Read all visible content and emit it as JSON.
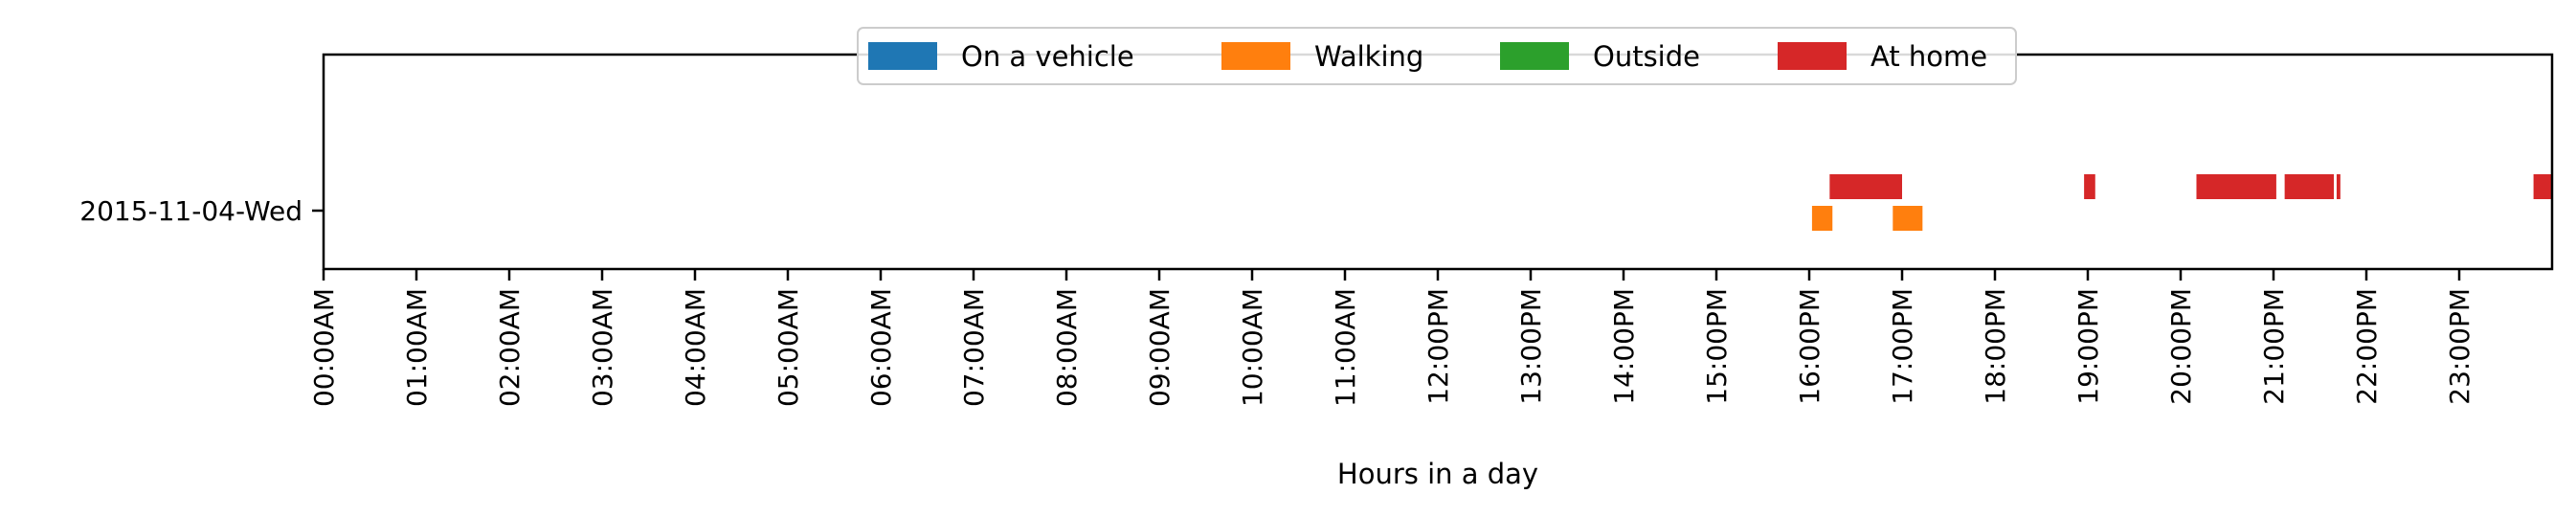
{
  "chart_data": {
    "type": "timeline",
    "title": "",
    "xlabel": "Hours in a day",
    "ylabel": "",
    "xlim": [
      0,
      24
    ],
    "x_ticks": [
      {
        "value": 0,
        "label": "00:00AM"
      },
      {
        "value": 1,
        "label": "01:00AM"
      },
      {
        "value": 2,
        "label": "02:00AM"
      },
      {
        "value": 3,
        "label": "03:00AM"
      },
      {
        "value": 4,
        "label": "04:00AM"
      },
      {
        "value": 5,
        "label": "05:00AM"
      },
      {
        "value": 6,
        "label": "06:00AM"
      },
      {
        "value": 7,
        "label": "07:00AM"
      },
      {
        "value": 8,
        "label": "08:00AM"
      },
      {
        "value": 9,
        "label": "09:00AM"
      },
      {
        "value": 10,
        "label": "10:00AM"
      },
      {
        "value": 11,
        "label": "11:00AM"
      },
      {
        "value": 12,
        "label": "12:00PM"
      },
      {
        "value": 13,
        "label": "13:00PM"
      },
      {
        "value": 14,
        "label": "14:00PM"
      },
      {
        "value": 15,
        "label": "15:00PM"
      },
      {
        "value": 16,
        "label": "16:00PM"
      },
      {
        "value": 17,
        "label": "17:00PM"
      },
      {
        "value": 18,
        "label": "18:00PM"
      },
      {
        "value": 19,
        "label": "19:00PM"
      },
      {
        "value": 20,
        "label": "20:00PM"
      },
      {
        "value": 21,
        "label": "21:00PM"
      },
      {
        "value": 22,
        "label": "22:00PM"
      },
      {
        "value": 23,
        "label": "23:00PM"
      }
    ],
    "days": [
      "2015-11-04-Wed"
    ],
    "legend_position": "top-center",
    "grid": false,
    "series": [
      {
        "name": "On a vehicle",
        "color": "#1f77b4",
        "intervals": []
      },
      {
        "name": "Walking",
        "color": "#ff7f0e",
        "intervals": [
          [
            16.03,
            16.25
          ],
          [
            16.9,
            17.22
          ]
        ]
      },
      {
        "name": "Outside",
        "color": "#2ca02c",
        "intervals": []
      },
      {
        "name": "At home",
        "color": "#d62728",
        "intervals": [
          [
            16.22,
            17.0
          ],
          [
            18.96,
            19.08
          ],
          [
            20.17,
            21.03
          ],
          [
            21.12,
            21.65
          ],
          [
            21.68,
            21.72
          ],
          [
            23.8,
            24.0
          ]
        ]
      }
    ]
  }
}
